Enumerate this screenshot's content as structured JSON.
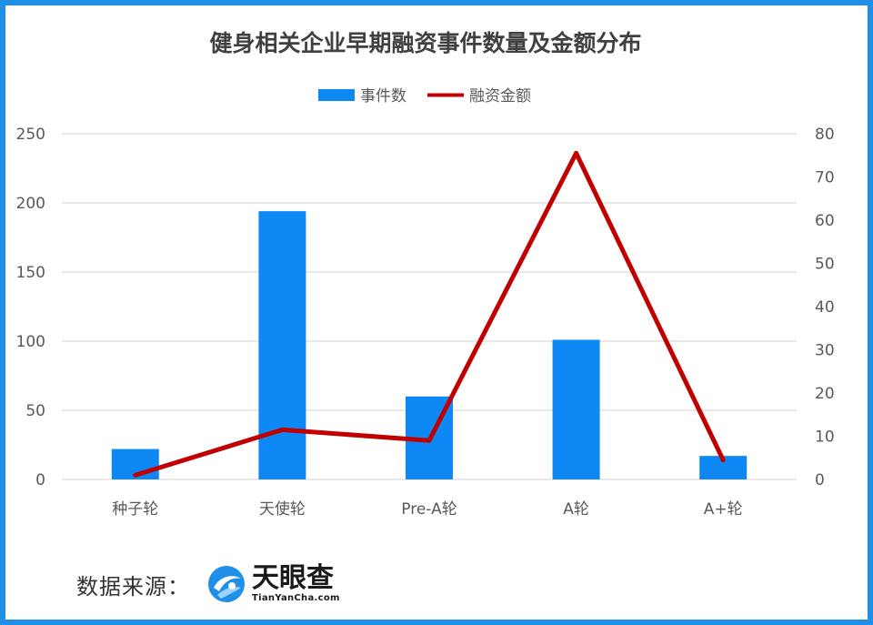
{
  "chart_data": {
    "type": "bar",
    "title": "健身相关企业早期融资事件数量及金额分布",
    "categories": [
      "种子轮",
      "天使轮",
      "Pre-A轮",
      "A轮",
      "A+轮"
    ],
    "series": [
      {
        "name": "事件数",
        "type": "bar",
        "axis": "left",
        "color": "#0d88f5",
        "values": [
          22,
          194,
          60,
          101,
          17
        ]
      },
      {
        "name": "融资金额",
        "type": "line",
        "axis": "right",
        "color": "#c00000",
        "values": [
          1,
          11.5,
          9,
          75.5,
          4.5
        ]
      }
    ],
    "y_left": {
      "min": 0,
      "max": 250,
      "ticks": [
        0,
        50,
        100,
        150,
        200,
        250
      ]
    },
    "y_right": {
      "min": 0,
      "max": 80,
      "ticks": [
        0,
        10,
        20,
        30,
        40,
        50,
        60,
        70,
        80
      ]
    },
    "grid": true,
    "legend_position": "top"
  },
  "footer": {
    "source_label": "数据来源：",
    "logo_cn": "天眼查",
    "logo_en": "TianYanCha.com"
  },
  "colors": {
    "border": "#1f8fe8",
    "grid": "#d9d9d9",
    "title": "#404040",
    "tick": "#595959"
  },
  "icons": {
    "logo": "tianyancha-logo-icon"
  }
}
